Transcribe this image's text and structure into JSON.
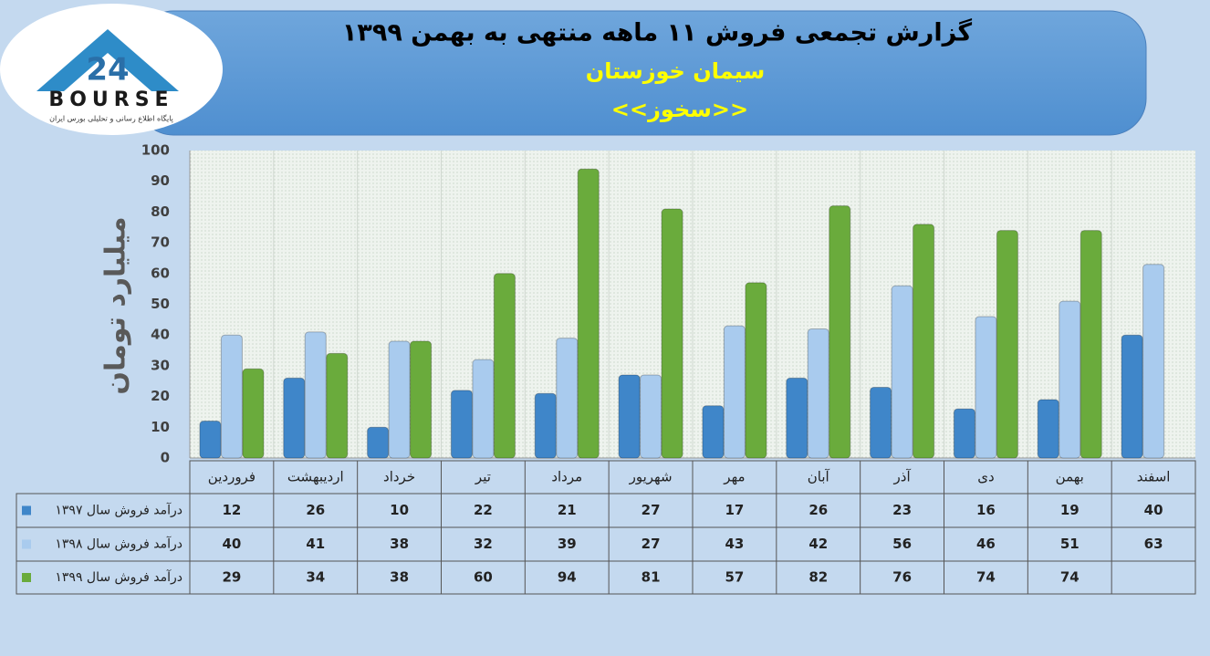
{
  "logo": {
    "text": "BOURSE",
    "number": "24",
    "subtitle": "پایگاه اطلاع رسانی و تحلیلی بورس ایران"
  },
  "chart_data": {
    "type": "bar",
    "title": "گزارش تجمعی فروش ۱۱ ماهه منتهی به بهمن ۱۳۹۹",
    "subtitle": "سیمان خوزستان",
    "symbol": "<<سخوز>>",
    "y_label": "میلیارد تومان",
    "categories": [
      "فروردین",
      "اردیبهشت",
      "خرداد",
      "تیر",
      "مرداد",
      "شهریور",
      "مهر",
      "آبان",
      "آذر",
      "دی",
      "بهمن",
      "اسفند"
    ],
    "series": [
      {
        "name": "درآمد فروش سال ۱۳۹۷",
        "color": "#3f86c9",
        "values": [
          12,
          26,
          10,
          22,
          21,
          27,
          17,
          26,
          23,
          16,
          19,
          40
        ]
      },
      {
        "name": "درآمد فروش سال ۱۳۹۸",
        "color": "#a9cbee",
        "values": [
          40,
          41,
          38,
          32,
          39,
          27,
          43,
          42,
          56,
          46,
          51,
          63
        ]
      },
      {
        "name": "درآمد فروش سال ۱۳۹۹",
        "color": "#6aab3c",
        "values": [
          29,
          34,
          38,
          60,
          94,
          81,
          57,
          82,
          76,
          74,
          74,
          null
        ]
      }
    ],
    "ylim": [
      0,
      100
    ],
    "yticks": [
      0,
      10,
      20,
      30,
      40,
      50,
      60,
      70,
      80,
      90,
      100
    ]
  }
}
